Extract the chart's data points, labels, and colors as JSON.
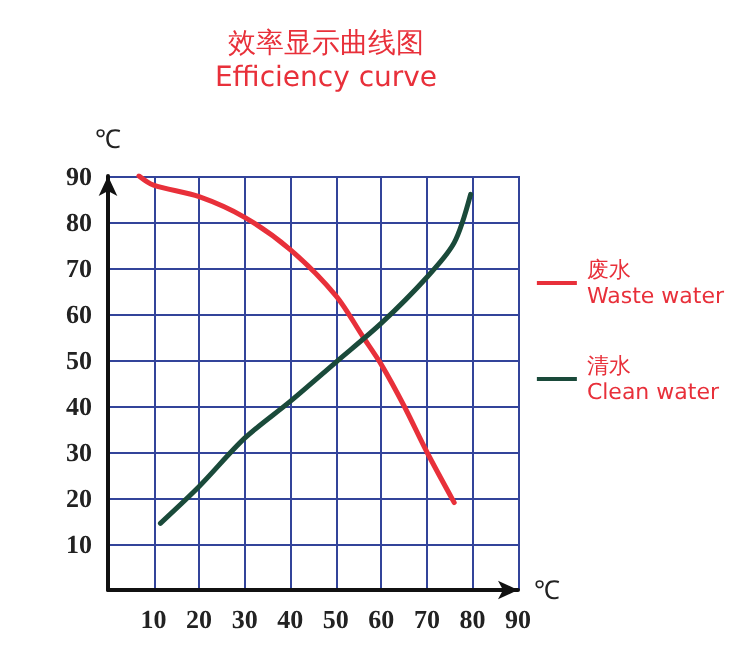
{
  "chart_data": {
    "type": "line",
    "title": "效率显示曲线图",
    "subtitle": "Efficiency curve",
    "xlabel": "℃",
    "ylabel": "℃",
    "xlim": [
      0,
      90
    ],
    "ylim": [
      0,
      90
    ],
    "xticks": [
      10,
      20,
      30,
      40,
      50,
      60,
      70,
      80,
      90
    ],
    "yticks": [
      10,
      20,
      30,
      40,
      50,
      60,
      70,
      80,
      90
    ],
    "grid": true,
    "legend": "right",
    "marker": "none",
    "line_style": "solid",
    "series": [
      {
        "name": "废水\nWaste water",
        "color": "#e8303a",
        "x": [
          6.8,
          10,
          20,
          30,
          40,
          50,
          56,
          60,
          65,
          70,
          76
        ],
        "values": [
          90,
          88,
          85.5,
          81,
          74,
          64,
          55,
          49,
          40,
          30,
          19
        ]
      },
      {
        "name": "清水\nClean water",
        "color": "#1a4a3a",
        "x": [
          11.5,
          20,
          30,
          40,
          50,
          60,
          70,
          76,
          79.6
        ],
        "values": [
          14.5,
          22.5,
          33,
          41,
          49.5,
          58,
          68,
          75.5,
          86
        ]
      }
    ]
  }
}
